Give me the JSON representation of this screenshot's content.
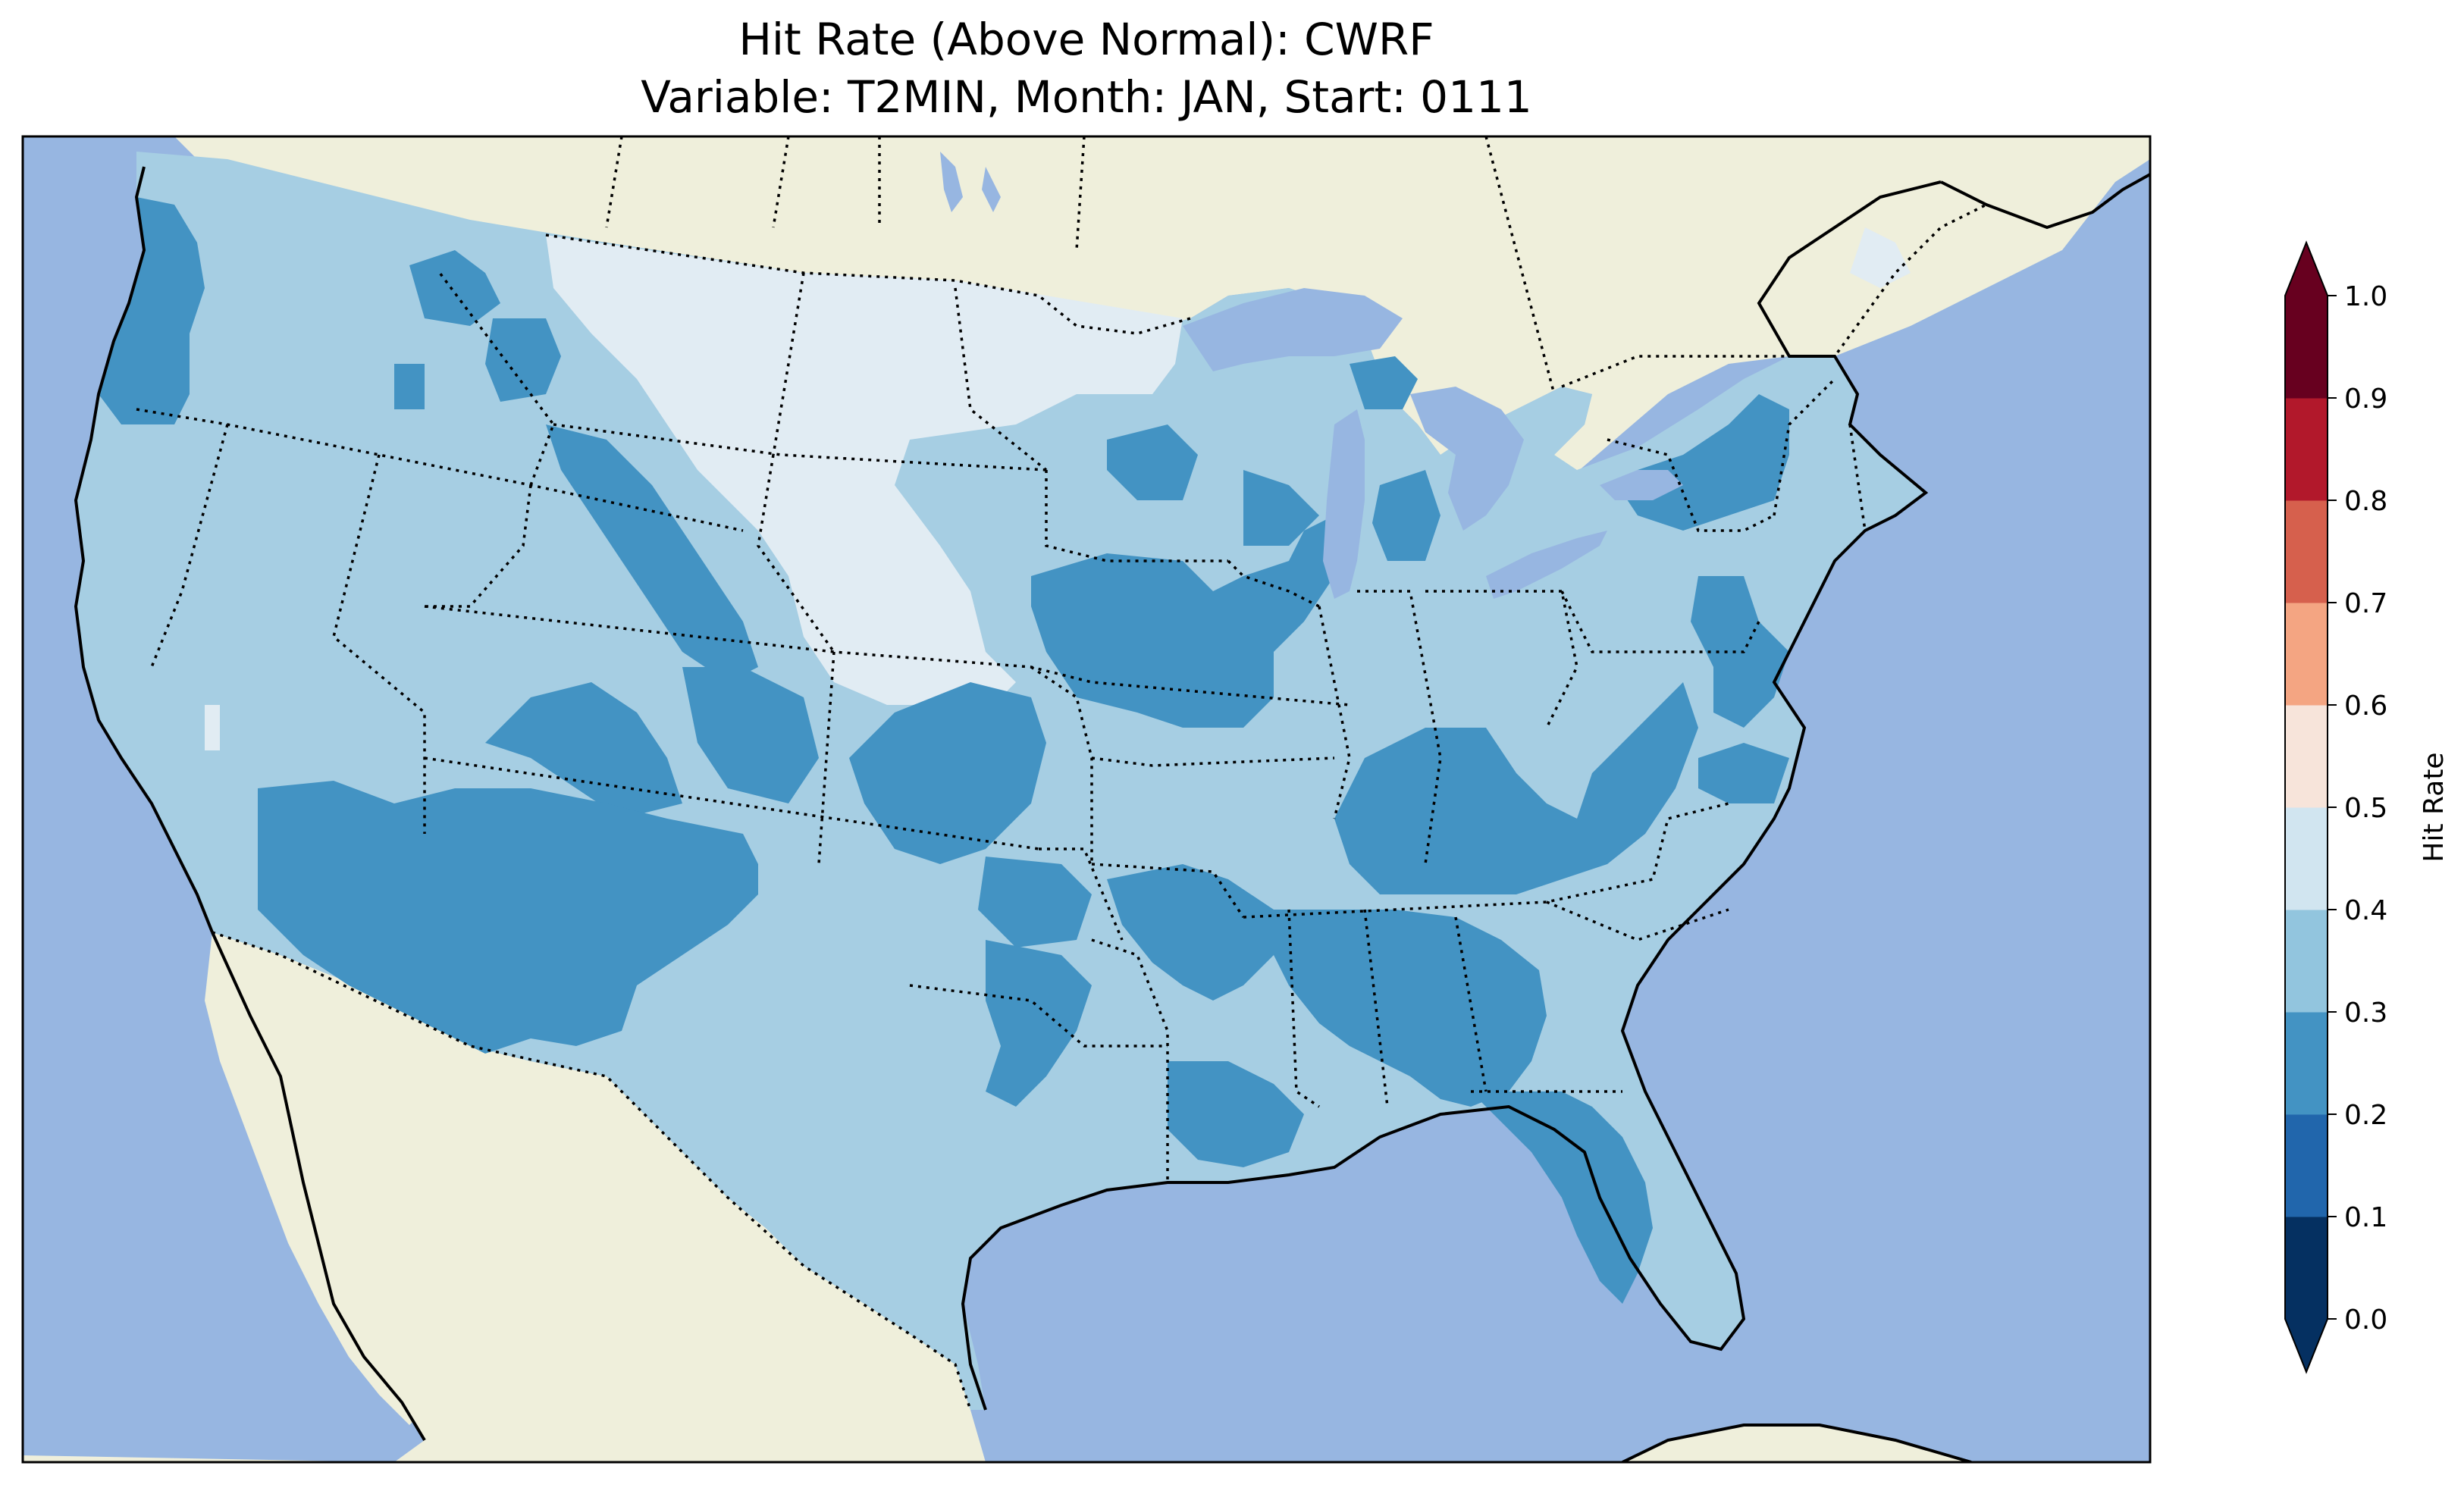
{
  "title": {
    "line1": "Hit Rate (Above Normal): CWRF",
    "line2": "Variable: T2MIN, Month: JAN, Start: 0111"
  },
  "colorbar": {
    "label": "Hit Rate",
    "ticks": [
      "0.0",
      "0.1",
      "0.2",
      "0.3",
      "0.4",
      "0.5",
      "0.6",
      "0.7",
      "0.8",
      "0.9",
      "1.0"
    ],
    "bins": [
      {
        "from": 0.0,
        "to": 0.1,
        "color": "#053061"
      },
      {
        "from": 0.1,
        "to": 0.2,
        "color": "#2166ac"
      },
      {
        "from": 0.2,
        "to": 0.3,
        "color": "#4393c3"
      },
      {
        "from": 0.3,
        "to": 0.4,
        "color": "#92c5de"
      },
      {
        "from": 0.4,
        "to": 0.5,
        "color": "#d1e5f0"
      },
      {
        "from": 0.5,
        "to": 0.6,
        "color": "#f7e4da"
      },
      {
        "from": 0.6,
        "to": 0.7,
        "color": "#f4a582"
      },
      {
        "from": 0.7,
        "to": 0.8,
        "color": "#d6604d"
      },
      {
        "from": 0.8,
        "to": 0.9,
        "color": "#b2182b"
      },
      {
        "from": 0.9,
        "to": 1.0,
        "color": "#67001f"
      }
    ],
    "extend": "both",
    "under_color": "#053061",
    "over_color": "#67001f"
  },
  "map": {
    "ocean_color": "#97b6e1",
    "land_color": "#efefdb",
    "projection": "Lambert Conformal",
    "region": "Contiguous United States",
    "field_levels": [
      {
        "name": "0.2-0.3",
        "color": "#4393c3"
      },
      {
        "name": "0.3-0.4",
        "color": "#a6cee3"
      },
      {
        "name": "0.4-0.5",
        "color": "#e1ecf3"
      }
    ]
  }
}
